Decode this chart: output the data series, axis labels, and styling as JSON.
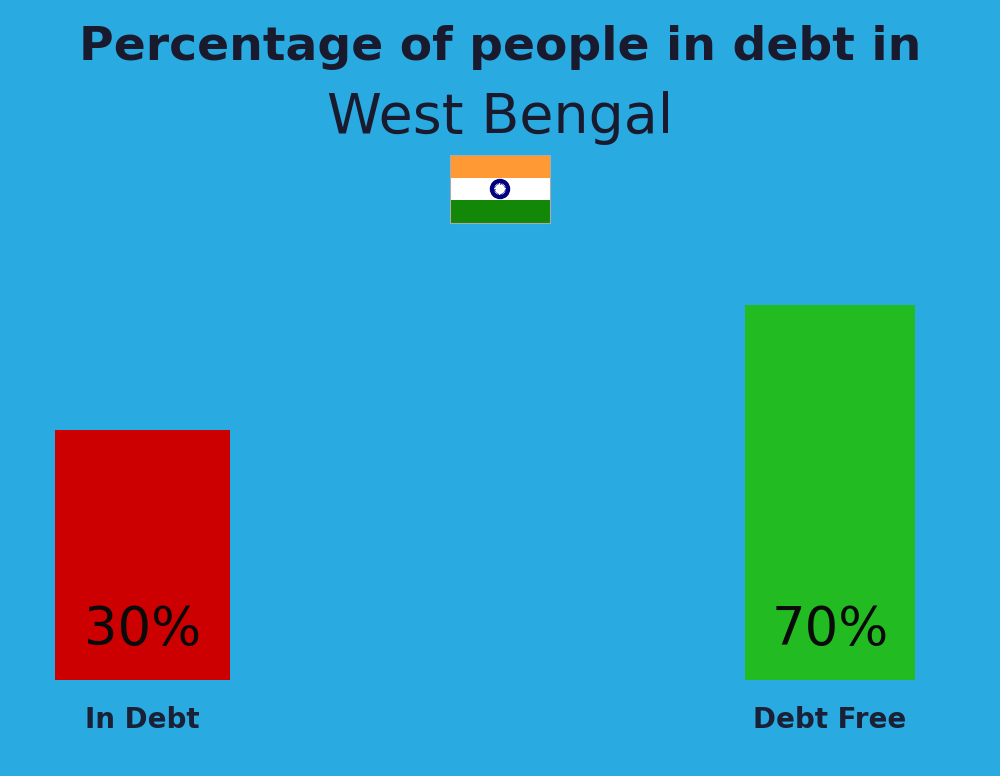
{
  "background_color": "#29abe2",
  "title_line1": "Percentage of people in debt in",
  "title_line2": "West Bengal",
  "title_color": "#1a1a2e",
  "title_fontsize": 34,
  "subtitle_fontsize": 40,
  "bar1_label": "30%",
  "bar1_color": "#cc0000",
  "bar1_caption": "In Debt",
  "bar2_label": "70%",
  "bar2_color": "#22bb22",
  "bar2_caption": "Debt Free",
  "label_fontsize": 38,
  "caption_fontsize": 20,
  "caption_color": "#1a2035",
  "bar_label_color": "#0a0a0a",
  "flag_saffron": "#FF9933",
  "flag_white": "#FFFFFF",
  "flag_green": "#138808",
  "flag_chakra": "#000080"
}
